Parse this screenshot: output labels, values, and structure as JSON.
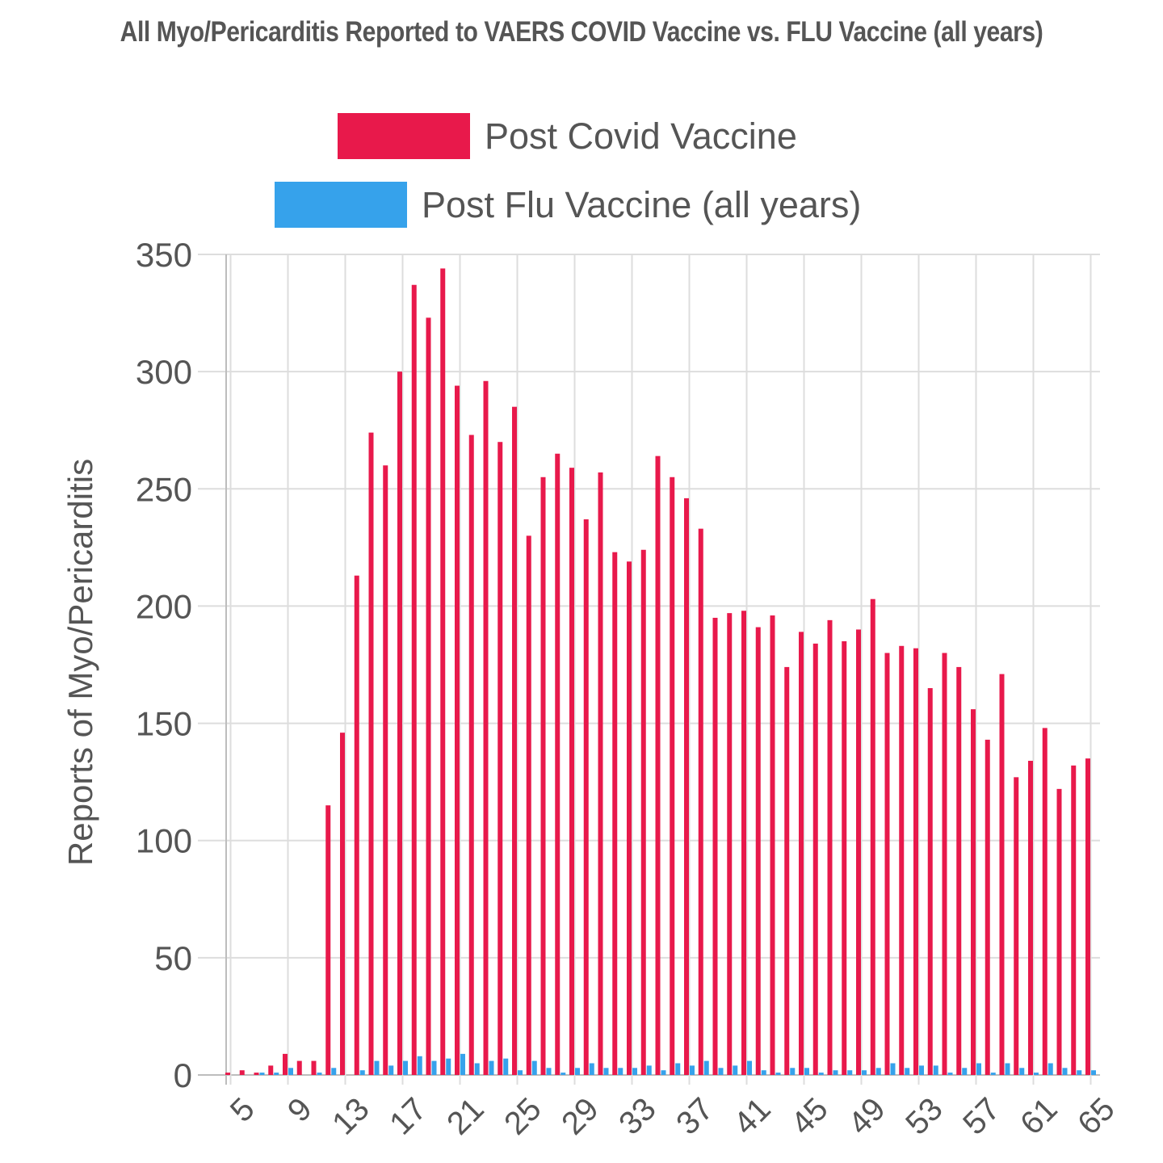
{
  "title": "All Myo/Pericarditis Reported to VAERS COVID Vaccine vs. FLU Vaccine (all years)",
  "legend": [
    {
      "label": "Post Covid Vaccine",
      "color": "#e8194b"
    },
    {
      "label": "Post Flu Vaccine (all years)",
      "color": "#36a2eb"
    }
  ],
  "chart_data": {
    "type": "bar",
    "title": "All Myo/Pericarditis Reported to VAERS COVID Vaccine vs. FLU Vaccine (all years)",
    "xlabel": "",
    "ylabel": "Reports of Myo/Pericarditis",
    "ylim": [
      0,
      350
    ],
    "yticks": [
      0,
      50,
      100,
      150,
      200,
      250,
      300,
      350
    ],
    "xtick_labels": [
      "5",
      "9",
      "13",
      "17",
      "21",
      "25",
      "29",
      "33",
      "37",
      "41",
      "45",
      "49",
      "53",
      "57",
      "61",
      "65"
    ],
    "grid": true,
    "legend_position": "top-center",
    "categories": [
      5,
      6,
      7,
      8,
      9,
      10,
      11,
      12,
      13,
      14,
      15,
      16,
      17,
      18,
      19,
      20,
      21,
      22,
      23,
      24,
      25,
      26,
      27,
      28,
      29,
      30,
      31,
      32,
      33,
      34,
      35,
      36,
      37,
      38,
      39,
      40,
      41,
      42,
      43,
      44,
      45,
      46,
      47,
      48,
      49,
      50,
      51,
      52,
      53,
      54,
      55,
      56,
      57,
      58,
      59,
      60,
      61,
      62,
      63,
      64,
      65
    ],
    "series": [
      {
        "name": "Post Covid Vaccine",
        "color": "#e8194b",
        "values": [
          1,
          2,
          1,
          4,
          9,
          6,
          6,
          115,
          146,
          213,
          274,
          260,
          300,
          337,
          323,
          344,
          294,
          273,
          296,
          270,
          285,
          230,
          255,
          265,
          259,
          237,
          257,
          223,
          219,
          224,
          264,
          255,
          246,
          233,
          195,
          197,
          198,
          191,
          196,
          174,
          189,
          184,
          194,
          185,
          190,
          203,
          180,
          183,
          182,
          165,
          180,
          174,
          156,
          143,
          171,
          127,
          134,
          148,
          122,
          132,
          135
        ]
      },
      {
        "name": "Post Flu Vaccine (all years)",
        "color": "#36a2eb",
        "values": [
          0,
          0,
          1,
          1,
          3,
          0,
          1,
          3,
          0,
          2,
          6,
          4,
          6,
          8,
          6,
          7,
          9,
          5,
          6,
          7,
          2,
          6,
          3,
          1,
          3,
          5,
          3,
          3,
          3,
          4,
          2,
          5,
          4,
          6,
          3,
          4,
          6,
          2,
          1,
          3,
          3,
          1,
          2,
          2,
          2,
          3,
          5,
          3,
          4,
          4,
          1,
          3,
          5,
          1,
          5,
          3,
          1,
          5,
          3,
          2,
          2
        ]
      }
    ]
  }
}
